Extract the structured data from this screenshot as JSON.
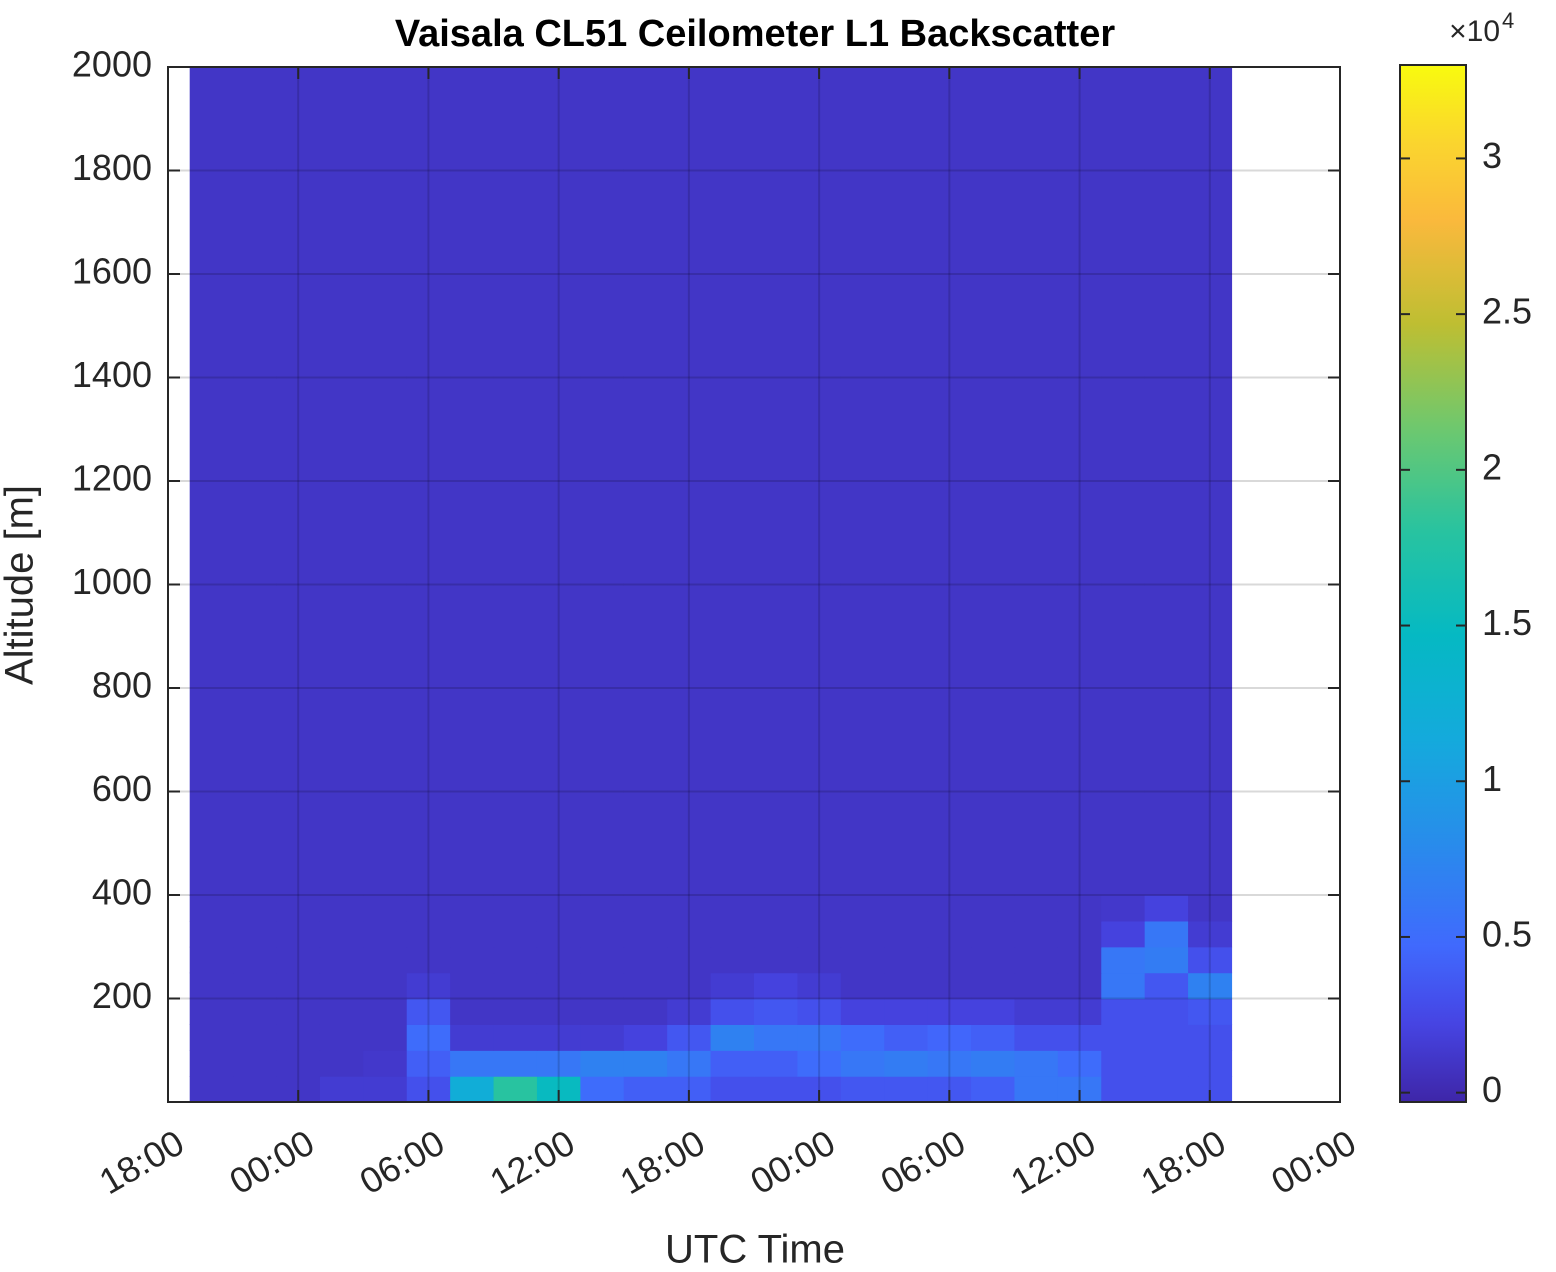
{
  "chart_data": {
    "type": "heatmap",
    "title": "Vaisala CL51 Ceilometer L1 Backscatter",
    "xlabel": "UTC Time",
    "ylabel": "Altitude [m]",
    "xlim": [
      0,
      54
    ],
    "xticks": [
      {
        "value": 0,
        "label": "18:00"
      },
      {
        "value": 6,
        "label": "00:00"
      },
      {
        "value": 12,
        "label": "06:00"
      },
      {
        "value": 18,
        "label": "12:00"
      },
      {
        "value": 24,
        "label": "18:00"
      },
      {
        "value": 30,
        "label": "00:00"
      },
      {
        "value": 36,
        "label": "06:00"
      },
      {
        "value": 42,
        "label": "12:00"
      },
      {
        "value": 48,
        "label": "18:00"
      },
      {
        "value": 54,
        "label": "00:00"
      }
    ],
    "ylim": [
      0,
      2000
    ],
    "yticks": [
      200,
      400,
      600,
      800,
      1000,
      1200,
      1400,
      1600,
      1800,
      2000
    ],
    "x_bins": [
      1,
      3,
      5,
      7,
      9,
      11,
      13,
      15,
      17,
      19,
      21,
      23,
      25,
      27,
      29,
      31,
      33,
      35,
      37,
      39,
      41,
      43,
      45,
      47,
      49
    ],
    "y_bins": [
      0,
      50,
      100,
      150,
      200,
      250,
      300,
      350,
      400,
      2000
    ],
    "z": [
      [
        0.1,
        0.1,
        0.1,
        0.15,
        0.15,
        0.3,
        1.2,
        1.8,
        1.5,
        0.5,
        0.4,
        0.4,
        0.3,
        0.3,
        0.3,
        0.35,
        0.35,
        0.35,
        0.4,
        0.6,
        0.6,
        0.3,
        0.3,
        0.3
      ],
      [
        0.1,
        0.1,
        0.1,
        0.1,
        0.12,
        0.4,
        0.6,
        0.6,
        0.6,
        0.7,
        0.7,
        0.6,
        0.4,
        0.4,
        0.5,
        0.6,
        0.65,
        0.6,
        0.65,
        0.6,
        0.5,
        0.3,
        0.3,
        0.3
      ],
      [
        0.1,
        0.1,
        0.1,
        0.1,
        0.1,
        0.5,
        0.15,
        0.15,
        0.15,
        0.15,
        0.2,
        0.35,
        0.7,
        0.6,
        0.6,
        0.5,
        0.4,
        0.45,
        0.4,
        0.3,
        0.3,
        0.3,
        0.3,
        0.3
      ],
      [
        0.1,
        0.1,
        0.1,
        0.1,
        0.1,
        0.35,
        0.1,
        0.1,
        0.1,
        0.1,
        0.1,
        0.15,
        0.3,
        0.35,
        0.3,
        0.2,
        0.2,
        0.2,
        0.2,
        0.15,
        0.15,
        0.3,
        0.3,
        0.35
      ],
      [
        0.1,
        0.1,
        0.1,
        0.1,
        0.1,
        0.15,
        0.1,
        0.1,
        0.1,
        0.1,
        0.1,
        0.1,
        0.15,
        0.2,
        0.15,
        0.1,
        0.1,
        0.1,
        0.1,
        0.1,
        0.1,
        0.6,
        0.35,
        0.7
      ],
      [
        0.1,
        0.1,
        0.1,
        0.1,
        0.1,
        0.1,
        0.1,
        0.1,
        0.1,
        0.1,
        0.1,
        0.1,
        0.1,
        0.1,
        0.1,
        0.1,
        0.1,
        0.1,
        0.1,
        0.1,
        0.1,
        0.6,
        0.65,
        0.3
      ],
      [
        0.1,
        0.1,
        0.1,
        0.1,
        0.1,
        0.1,
        0.1,
        0.1,
        0.1,
        0.1,
        0.1,
        0.1,
        0.1,
        0.1,
        0.1,
        0.1,
        0.1,
        0.1,
        0.1,
        0.1,
        0.1,
        0.2,
        0.6,
        0.15
      ],
      [
        0.1,
        0.1,
        0.1,
        0.1,
        0.1,
        0.1,
        0.1,
        0.1,
        0.1,
        0.1,
        0.1,
        0.1,
        0.1,
        0.1,
        0.1,
        0.1,
        0.1,
        0.1,
        0.1,
        0.1,
        0.1,
        0.12,
        0.2,
        0.1
      ],
      [
        0.1,
        0.1,
        0.1,
        0.1,
        0.1,
        0.1,
        0.1,
        0.1,
        0.1,
        0.1,
        0.1,
        0.1,
        0.1,
        0.1,
        0.1,
        0.1,
        0.1,
        0.1,
        0.1,
        0.1,
        0.1,
        0.1,
        0.1,
        0.1
      ]
    ],
    "clim": [
      -0.03,
      3.3
    ],
    "cticks": [
      0,
      0.5,
      1,
      1.5,
      2,
      2.5,
      3
    ],
    "colorbar_multiplier": "×10",
    "colorbar_exponent": 4,
    "colormap": "parula",
    "grid": true
  }
}
